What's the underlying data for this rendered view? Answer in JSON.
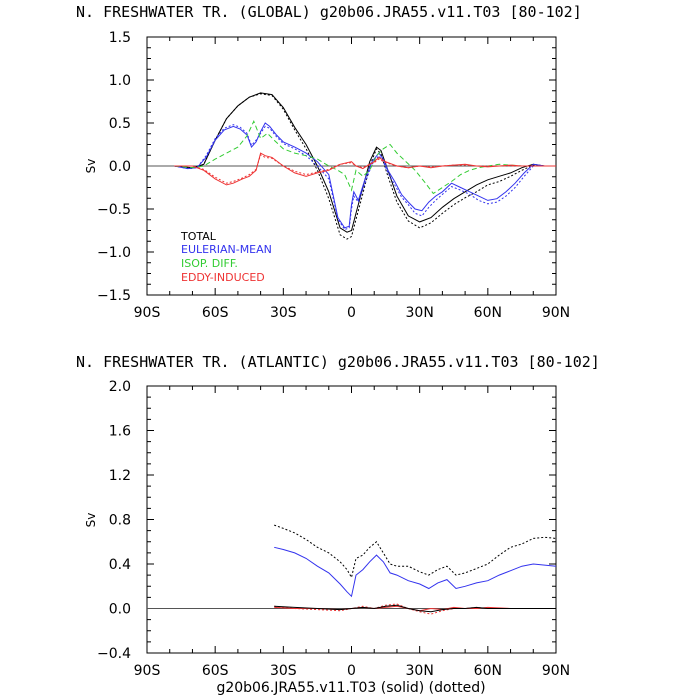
{
  "chart_data": [
    {
      "type": "line",
      "title": "N. FRESHWATER TR. (GLOBAL) g20b06.JRA55.v11.T03 [80-102]",
      "ylabel": "Sv",
      "xlim": [
        -90,
        90
      ],
      "ylim": [
        -1.5,
        1.5
      ],
      "xticks": [
        -90,
        -60,
        -30,
        0,
        30,
        60,
        90
      ],
      "xtick_labels": [
        "90S",
        "60S",
        "30S",
        "0",
        "30N",
        "60N",
        "90N"
      ],
      "yticks": [
        -1.5,
        -1.0,
        -0.5,
        0.0,
        0.5,
        1.0,
        1.5
      ],
      "ytick_labels": [
        "−1.5",
        "−1.0",
        "−0.5",
        "0.0",
        "0.5",
        "1.0",
        "1.5"
      ],
      "zero_line": true,
      "legend_placement": "lower-left",
      "series": [
        {
          "name": "TOTAL",
          "color": "#000000",
          "style": "solid",
          "x": [
            -78,
            -70,
            -65,
            -60,
            -55,
            -50,
            -45,
            -40,
            -35,
            -30,
            -25,
            -20,
            -15,
            -10,
            -5,
            -2,
            0,
            2,
            5,
            8,
            11,
            13,
            16,
            20,
            25,
            30,
            35,
            40,
            45,
            50,
            55,
            60,
            65,
            70,
            75,
            80,
            85,
            90
          ],
          "y": [
            0.0,
            -0.02,
            0.02,
            0.3,
            0.55,
            0.7,
            0.8,
            0.85,
            0.83,
            0.68,
            0.45,
            0.25,
            0.0,
            -0.3,
            -0.72,
            -0.77,
            -0.75,
            -0.55,
            -0.25,
            0.05,
            0.22,
            0.18,
            -0.05,
            -0.35,
            -0.58,
            -0.65,
            -0.6,
            -0.48,
            -0.38,
            -0.3,
            -0.22,
            -0.16,
            -0.12,
            -0.08,
            -0.02,
            0.02,
            0.0,
            0.0
          ]
        },
        {
          "name": "",
          "color": "#000000",
          "style": "dotted",
          "x": [
            -78,
            -70,
            -65,
            -60,
            -55,
            -50,
            -45,
            -40,
            -35,
            -30,
            -25,
            -20,
            -15,
            -10,
            -5,
            -2,
            0,
            2,
            5,
            8,
            11,
            13,
            16,
            20,
            25,
            30,
            35,
            40,
            45,
            50,
            55,
            60,
            65,
            70,
            75,
            80,
            85,
            90
          ],
          "y": [
            0.0,
            -0.03,
            0.02,
            0.3,
            0.55,
            0.7,
            0.8,
            0.84,
            0.82,
            0.66,
            0.42,
            0.2,
            -0.05,
            -0.38,
            -0.8,
            -0.85,
            -0.82,
            -0.62,
            -0.32,
            0.0,
            0.2,
            0.14,
            -0.12,
            -0.42,
            -0.64,
            -0.72,
            -0.66,
            -0.55,
            -0.45,
            -0.37,
            -0.3,
            -0.22,
            -0.18,
            -0.12,
            -0.05,
            0.01,
            0.0,
            0.0
          ]
        },
        {
          "name": "EULERIAN-MEAN",
          "color": "#3333ee",
          "style": "solid",
          "x": [
            -78,
            -72,
            -68,
            -64,
            -60,
            -56,
            -52,
            -49,
            -46,
            -44,
            -42,
            -40,
            -38,
            -36,
            -33,
            -30,
            -25,
            -20,
            -15,
            -10,
            -6,
            -3,
            -1,
            0,
            1,
            3,
            6,
            9,
            12,
            14,
            16,
            19,
            22,
            25,
            28,
            31,
            34,
            37,
            40,
            44,
            48,
            52,
            56,
            60,
            64,
            68,
            72,
            76,
            80,
            85,
            90
          ],
          "y": [
            0.0,
            -0.03,
            -0.02,
            0.1,
            0.3,
            0.42,
            0.46,
            0.43,
            0.36,
            0.22,
            0.28,
            0.4,
            0.5,
            0.46,
            0.36,
            0.28,
            0.22,
            0.15,
            0.05,
            -0.1,
            -0.6,
            -0.72,
            -0.7,
            -0.45,
            -0.3,
            -0.4,
            -0.15,
            0.05,
            0.15,
            0.08,
            -0.05,
            -0.18,
            -0.33,
            -0.42,
            -0.5,
            -0.52,
            -0.42,
            -0.35,
            -0.3,
            -0.2,
            -0.25,
            -0.3,
            -0.35,
            -0.4,
            -0.38,
            -0.3,
            -0.2,
            -0.08,
            0.02,
            0.0,
            0.0
          ]
        },
        {
          "name": "",
          "color": "#3333ee",
          "style": "dotted",
          "x": [
            -78,
            -72,
            -68,
            -64,
            -60,
            -56,
            -52,
            -49,
            -46,
            -44,
            -42,
            -40,
            -38,
            -36,
            -33,
            -30,
            -25,
            -20,
            -15,
            -10,
            -6,
            -3,
            -1,
            0,
            1,
            3,
            6,
            9,
            12,
            14,
            16,
            19,
            22,
            25,
            28,
            31,
            34,
            37,
            40,
            44,
            48,
            52,
            56,
            60,
            64,
            68,
            72,
            76,
            80,
            85,
            90
          ],
          "y": [
            0.0,
            -0.03,
            -0.02,
            0.12,
            0.32,
            0.44,
            0.48,
            0.45,
            0.38,
            0.24,
            0.3,
            0.38,
            0.46,
            0.44,
            0.34,
            0.26,
            0.2,
            0.12,
            0.0,
            -0.15,
            -0.62,
            -0.74,
            -0.72,
            -0.5,
            -0.35,
            -0.42,
            -0.2,
            0.02,
            0.12,
            0.05,
            -0.08,
            -0.22,
            -0.36,
            -0.45,
            -0.55,
            -0.58,
            -0.48,
            -0.4,
            -0.33,
            -0.24,
            -0.28,
            -0.33,
            -0.4,
            -0.44,
            -0.42,
            -0.35,
            -0.25,
            -0.12,
            0.0,
            0.0,
            0.0
          ]
        },
        {
          "name": "ISOP. DIFF.",
          "color": "#33cc33",
          "style": "dashed",
          "x": [
            -78,
            -70,
            -65,
            -60,
            -55,
            -50,
            -46,
            -43,
            -40,
            -37,
            -34,
            -30,
            -25,
            -20,
            -15,
            -10,
            -6,
            -3,
            0,
            2,
            5,
            8,
            11,
            14,
            17,
            20,
            24,
            28,
            32,
            36,
            40,
            44,
            48,
            52,
            56,
            60,
            65,
            70,
            75,
            80,
            85,
            90
          ],
          "y": [
            0.0,
            -0.02,
            0.0,
            0.08,
            0.15,
            0.22,
            0.35,
            0.52,
            0.32,
            0.38,
            0.3,
            0.2,
            0.15,
            0.12,
            0.08,
            0.0,
            -0.05,
            -0.1,
            -0.28,
            -0.05,
            -0.12,
            -0.05,
            0.12,
            0.2,
            0.25,
            0.15,
            0.05,
            -0.05,
            -0.18,
            -0.32,
            -0.25,
            -0.18,
            -0.1,
            -0.05,
            -0.02,
            0.0,
            0.02,
            0.01,
            0.0,
            0.0,
            0.0,
            0.0
          ]
        },
        {
          "name": "EDDY-INDUCED",
          "color": "#ee3333",
          "style": "solid",
          "x": [
            -78,
            -70,
            -65,
            -60,
            -55,
            -52,
            -48,
            -45,
            -42,
            -40,
            -38,
            -35,
            -30,
            -25,
            -20,
            -15,
            -10,
            -5,
            0,
            2,
            5,
            8,
            10,
            12,
            15,
            20,
            25,
            30,
            35,
            40,
            45,
            50,
            55,
            60,
            65,
            70,
            75,
            80,
            85,
            90
          ],
          "y": [
            0.0,
            0.0,
            -0.05,
            -0.15,
            -0.22,
            -0.2,
            -0.15,
            -0.12,
            -0.05,
            0.15,
            0.12,
            0.1,
            0.0,
            -0.08,
            -0.12,
            -0.08,
            -0.05,
            0.02,
            0.05,
            0.0,
            -0.03,
            0.02,
            0.05,
            0.1,
            0.05,
            0.0,
            -0.02,
            0.0,
            -0.02,
            0.0,
            0.01,
            0.02,
            0.0,
            -0.01,
            0.0,
            0.01,
            0.0,
            0.0,
            0.0,
            0.0
          ]
        },
        {
          "name": "",
          "color": "#ee3333",
          "style": "dotted",
          "x": [
            -78,
            -70,
            -65,
            -60,
            -55,
            -52,
            -48,
            -45,
            -42,
            -40,
            -38,
            -35,
            -30,
            -25,
            -20,
            -15,
            -10,
            -5,
            0,
            2,
            5,
            8,
            10,
            12,
            15,
            20,
            25,
            30,
            35,
            40,
            45,
            50,
            55,
            60,
            65,
            70,
            75,
            80,
            85,
            90
          ],
          "y": [
            0.0,
            0.0,
            -0.04,
            -0.13,
            -0.2,
            -0.18,
            -0.14,
            -0.1,
            -0.04,
            0.13,
            0.1,
            0.09,
            0.0,
            -0.06,
            -0.1,
            -0.07,
            -0.04,
            0.02,
            0.04,
            0.0,
            -0.02,
            0.02,
            0.04,
            0.08,
            0.04,
            0.0,
            -0.02,
            0.0,
            -0.01,
            0.0,
            0.01,
            0.01,
            0.0,
            0.0,
            0.0,
            0.0,
            0.0,
            0.0,
            0.0,
            0.0
          ]
        }
      ]
    },
    {
      "type": "line",
      "title": "N. FRESHWATER TR. (ATLANTIC) g20b06.JRA55.v11.T03 [80-102]",
      "ylabel": "Sv",
      "xlabel": "g20b06.JRA55.v11.T03 (solid)  (dotted)",
      "xlim": [
        -90,
        90
      ],
      "ylim": [
        -0.4,
        2.0
      ],
      "xticks": [
        -90,
        -60,
        -30,
        0,
        30,
        60,
        90
      ],
      "xtick_labels": [
        "90S",
        "60S",
        "30S",
        "0",
        "30N",
        "60N",
        "90N"
      ],
      "yticks": [
        -0.4,
        0.0,
        0.4,
        0.8,
        1.2,
        1.6,
        2.0
      ],
      "ytick_labels": [
        "−0.4",
        "0.0",
        "0.4",
        "0.8",
        "1.2",
        "1.6",
        "2.0"
      ],
      "zero_line": true,
      "series": [
        {
          "name": "",
          "color": "#3333ee",
          "style": "solid",
          "x": [
            -34,
            -30,
            -25,
            -20,
            -15,
            -10,
            -5,
            -2,
            0,
            2,
            5,
            8,
            11,
            14,
            17,
            20,
            25,
            30,
            34,
            38,
            42,
            46,
            50,
            55,
            60,
            65,
            70,
            75,
            80,
            85,
            90
          ],
          "y": [
            0.55,
            0.53,
            0.5,
            0.45,
            0.38,
            0.32,
            0.22,
            0.15,
            0.11,
            0.3,
            0.35,
            0.42,
            0.48,
            0.42,
            0.32,
            0.3,
            0.25,
            0.22,
            0.18,
            0.23,
            0.26,
            0.18,
            0.2,
            0.23,
            0.25,
            0.3,
            0.34,
            0.38,
            0.4,
            0.39,
            0.38
          ]
        },
        {
          "name": "",
          "color": "#000000",
          "style": "dotted",
          "x": [
            -34,
            -30,
            -25,
            -20,
            -15,
            -10,
            -5,
            -2,
            0,
            2,
            5,
            8,
            11,
            14,
            17,
            20,
            25,
            30,
            34,
            38,
            42,
            46,
            50,
            55,
            60,
            65,
            70,
            75,
            80,
            85,
            90
          ],
          "y": [
            0.75,
            0.72,
            0.68,
            0.62,
            0.55,
            0.5,
            0.42,
            0.35,
            0.28,
            0.45,
            0.48,
            0.55,
            0.6,
            0.5,
            0.4,
            0.38,
            0.38,
            0.33,
            0.3,
            0.35,
            0.38,
            0.3,
            0.32,
            0.36,
            0.4,
            0.48,
            0.55,
            0.58,
            0.63,
            0.64,
            0.63
          ]
        },
        {
          "name": "",
          "color": "#ee3333",
          "style": "solid",
          "x": [
            -34,
            -25,
            -15,
            -5,
            0,
            5,
            10,
            15,
            20,
            25,
            30,
            35,
            40,
            45,
            50,
            55,
            60,
            70,
            80,
            90
          ],
          "y": [
            0.01,
            0.0,
            0.0,
            -0.01,
            0.0,
            0.01,
            0.0,
            0.01,
            0.02,
            0.0,
            -0.02,
            0.0,
            -0.01,
            0.01,
            0.0,
            0.0,
            0.01,
            0.0,
            0.0,
            0.0
          ]
        },
        {
          "name": "",
          "color": "#ee3333",
          "style": "dotted",
          "x": [
            -34,
            -25,
            -15,
            -5,
            0,
            5,
            10,
            15,
            20,
            25,
            30,
            35,
            40,
            45,
            50,
            55,
            60,
            70,
            80,
            90
          ],
          "y": [
            0.02,
            0.0,
            -0.01,
            -0.02,
            0.0,
            0.02,
            0.0,
            0.03,
            0.04,
            0.0,
            -0.03,
            -0.05,
            -0.02,
            0.0,
            0.0,
            0.01,
            0.0,
            0.0,
            0.0,
            0.0
          ]
        },
        {
          "name": "",
          "color": "#000000",
          "style": "solid",
          "x": [
            -34,
            -25,
            -15,
            -5,
            0,
            5,
            10,
            15,
            20,
            25,
            30,
            35,
            40,
            45,
            50,
            55,
            60,
            70,
            80,
            90
          ],
          "y": [
            0.02,
            0.01,
            0.0,
            -0.01,
            0.0,
            0.01,
            0.0,
            0.02,
            0.03,
            0.0,
            -0.02,
            -0.03,
            -0.01,
            0.0,
            0.0,
            0.01,
            0.0,
            0.0,
            0.0,
            0.0
          ]
        }
      ]
    }
  ]
}
